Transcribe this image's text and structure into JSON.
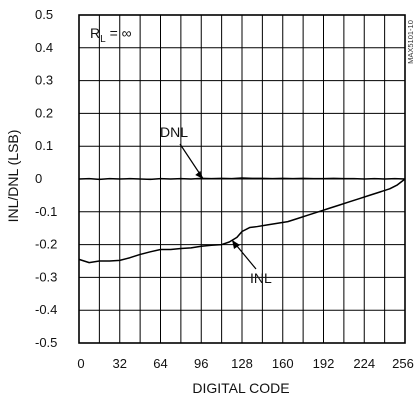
{
  "chart_data": {
    "type": "line",
    "xlabel": "DIGITAL CODE",
    "ylabel": "INL/DNL (LSB)",
    "xlim": [
      0,
      256
    ],
    "ylim": [
      -0.5,
      0.5
    ],
    "x_ticks": [
      "0",
      "32",
      "64",
      "96",
      "128",
      "160",
      "192",
      "224",
      "256"
    ],
    "y_ticks": [
      "0.5",
      "0.4",
      "0.3",
      "0.2",
      "0.1",
      "0",
      "-0.1",
      "-0.2",
      "-0.3",
      "-0.4",
      "-0.5"
    ],
    "grid": true,
    "condition": {
      "main": "R",
      "subscript": "L",
      "rest": " = ∞"
    },
    "watermark": "MAX5101-10",
    "annotations": [
      {
        "label": "DNL",
        "points_to": {
          "x": 96,
          "y": 0.0
        }
      },
      {
        "label": "INL",
        "points_to": {
          "x": 128,
          "y": -0.18
        }
      }
    ],
    "series": [
      {
        "name": "DNL",
        "x": [
          0,
          8,
          16,
          24,
          32,
          40,
          48,
          56,
          64,
          72,
          80,
          88,
          96,
          104,
          112,
          120,
          128,
          136,
          144,
          152,
          160,
          168,
          176,
          184,
          192,
          200,
          208,
          216,
          224,
          232,
          240,
          248,
          256
        ],
        "y": [
          0.0,
          0.001,
          -0.001,
          0.001,
          0.0,
          0.001,
          0.0,
          -0.001,
          0.001,
          0.0,
          0.001,
          0.0,
          0.002,
          0.001,
          0.002,
          0.001,
          0.003,
          0.002,
          0.002,
          0.001,
          0.002,
          0.001,
          0.002,
          0.001,
          0.001,
          0.002,
          0.001,
          0.001,
          0.0,
          0.001,
          0.0,
          0.001,
          0.0
        ]
      },
      {
        "name": "INL",
        "x": [
          0,
          4,
          8,
          16,
          24,
          32,
          40,
          48,
          56,
          64,
          72,
          80,
          88,
          96,
          104,
          112,
          118,
          124,
          128,
          134,
          140,
          148,
          156,
          164,
          172,
          180,
          188,
          196,
          204,
          212,
          220,
          228,
          236,
          244,
          250,
          256
        ],
        "y": [
          -0.245,
          -0.25,
          -0.255,
          -0.25,
          -0.25,
          -0.248,
          -0.24,
          -0.23,
          -0.222,
          -0.215,
          -0.215,
          -0.212,
          -0.21,
          -0.205,
          -0.202,
          -0.2,
          -0.192,
          -0.178,
          -0.16,
          -0.148,
          -0.145,
          -0.14,
          -0.135,
          -0.13,
          -0.12,
          -0.11,
          -0.1,
          -0.09,
          -0.08,
          -0.07,
          -0.06,
          -0.05,
          -0.04,
          -0.03,
          -0.018,
          0.0
        ]
      }
    ]
  }
}
